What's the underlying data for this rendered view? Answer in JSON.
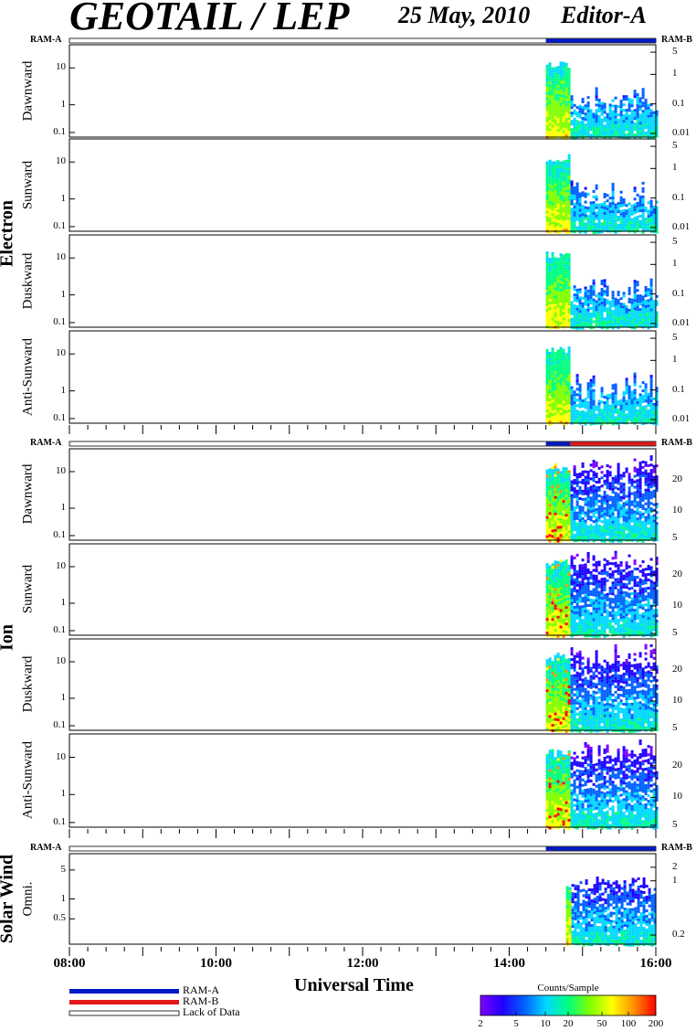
{
  "header": {
    "title": "GEOTAIL / LEP",
    "date": "25 May, 2010",
    "editor": "Editor-A"
  },
  "chart_data": {
    "type": "heatmap",
    "xlabel": "Universal Time",
    "x_ticks": [
      "08:00",
      "10:00",
      "12:00",
      "14:00",
      "16:00"
    ],
    "x_range": [
      "08:00",
      "16:00"
    ],
    "data_start": "14:30",
    "groups": [
      {
        "name": "Electron",
        "ram_left": "RAM-A",
        "ram_right": "RAM-B",
        "mode_bar": [
          {
            "from": "14:30",
            "to": "16:00",
            "mode": "RAM-A"
          }
        ],
        "panels": [
          {
            "label": "Dawnward",
            "left_ticks": [
              "10",
              "1",
              "0.1"
            ],
            "right_ticks": [
              "5",
              "1",
              "0.1",
              "0.01"
            ]
          },
          {
            "label": "Sunward",
            "left_ticks": [
              "10",
              "1",
              "0.1"
            ],
            "right_ticks": [
              "5",
              "1",
              "0.1",
              "0.01"
            ]
          },
          {
            "label": "Duskward",
            "left_ticks": [
              "10",
              "1",
              "0.1"
            ],
            "right_ticks": [
              "5",
              "1",
              "0.1",
              "0.01"
            ]
          },
          {
            "label": "Anti-Sunward",
            "left_ticks": [
              "10",
              "1",
              "0.1"
            ],
            "right_ticks": [
              "5",
              "1",
              "0.1",
              "0.01"
            ]
          }
        ]
      },
      {
        "name": "Ion",
        "ram_left": "RAM-A",
        "ram_right": "RAM-B",
        "mode_bar": [
          {
            "from": "14:30",
            "to": "14:50",
            "mode": "RAM-A"
          },
          {
            "from": "14:50",
            "to": "16:00",
            "mode": "RAM-B"
          }
        ],
        "panels": [
          {
            "label": "Dawnward",
            "left_ticks": [
              "10",
              "1",
              "0.1"
            ],
            "right_ticks": [
              "20",
              "10",
              "5"
            ]
          },
          {
            "label": "Sunward",
            "left_ticks": [
              "10",
              "1",
              "0.1"
            ],
            "right_ticks": [
              "20",
              "10",
              "5"
            ]
          },
          {
            "label": "Duskward",
            "left_ticks": [
              "10",
              "1",
              "0.1"
            ],
            "right_ticks": [
              "20",
              "10",
              "5"
            ]
          },
          {
            "label": "Anti-Sunward",
            "left_ticks": [
              "10",
              "1",
              "0.1"
            ],
            "right_ticks": [
              "20",
              "10",
              "5"
            ]
          }
        ]
      },
      {
        "name": "Solar Wind",
        "ram_left": "RAM-A",
        "ram_right": "RAM-B",
        "mode_bar": [
          {
            "from": "14:30",
            "to": "16:00",
            "mode": "RAM-A"
          }
        ],
        "panels": [
          {
            "label": "Omni.",
            "left_ticks": [
              "5",
              "1",
              "0.5"
            ],
            "right_ticks": [
              "2",
              "1",
              "0.2"
            ]
          }
        ]
      }
    ],
    "legend": {
      "items": [
        "RAM-A",
        "RAM-B",
        "Lack of Data"
      ],
      "colors": {
        "RAM-A": "#0018c8",
        "RAM-B": "#e01818",
        "Lack of Data": "#ffffff"
      }
    },
    "colorbar": {
      "title": "Counts/Sample",
      "ticks": [
        "2",
        "5",
        "10",
        "20",
        "50",
        "100",
        "200"
      ],
      "colors": [
        "#8000ff",
        "#2000ff",
        "#0060ff",
        "#00d8ff",
        "#00ff80",
        "#80ff00",
        "#ffff00",
        "#ff9000",
        "#ff0000"
      ]
    }
  }
}
